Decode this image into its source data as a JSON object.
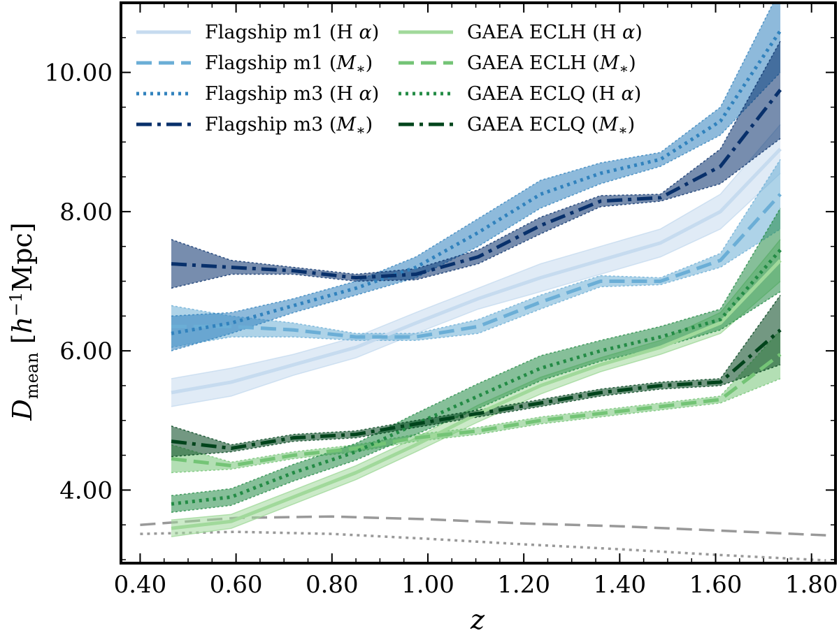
{
  "chart_data": {
    "type": "line",
    "xlabel": "z",
    "ylabel": "D_mean [h^-1 Mpc]",
    "xlim": [
      0.36,
      1.85
    ],
    "ylim": [
      2.95,
      11.0
    ],
    "x_ticks": [
      "0.40",
      "0.60",
      "0.80",
      "1.00",
      "1.20",
      "1.40",
      "1.60",
      "1.80"
    ],
    "y_ticks": [
      "4.00",
      "6.00",
      "8.00",
      "10.00"
    ],
    "grid": false,
    "legend_placement": "top",
    "x": [
      0.465,
      0.59,
      0.72,
      0.85,
      0.975,
      1.105,
      1.235,
      1.36,
      1.485,
      1.61,
      1.735
    ],
    "series": [
      {
        "name": "Flagship m1 (Hα)",
        "color": "#c6dbef",
        "dash": "solid",
        "values": [
          5.4,
          5.55,
          5.8,
          6.05,
          6.4,
          6.75,
          7.05,
          7.3,
          7.55,
          8.0,
          8.9
        ],
        "band": [
          0.2,
          0.2,
          0.15,
          0.15,
          0.15,
          0.15,
          0.2,
          0.2,
          0.2,
          0.25,
          0.35
        ]
      },
      {
        "name": "Flagship m1 (M*)",
        "color": "#6baed6",
        "dash": "dashed",
        "values": [
          6.35,
          6.35,
          6.3,
          6.2,
          6.2,
          6.35,
          6.7,
          7.0,
          7.0,
          7.3,
          8.25
        ],
        "band": [
          0.3,
          0.15,
          0.1,
          0.05,
          0.05,
          0.1,
          0.1,
          0.08,
          0.05,
          0.1,
          0.5
        ]
      },
      {
        "name": "Flagship m3 (Hα)",
        "color": "#3182bd",
        "dash": "dotted",
        "values": [
          6.25,
          6.4,
          6.65,
          6.9,
          7.2,
          7.7,
          8.25,
          8.55,
          8.75,
          9.3,
          10.6
        ],
        "band": [
          0.25,
          0.15,
          0.1,
          0.1,
          0.15,
          0.2,
          0.2,
          0.15,
          0.1,
          0.2,
          0.6
        ]
      },
      {
        "name": "Flagship m3 (M*)",
        "color": "#08306b",
        "dash": "dashdot",
        "values": [
          7.25,
          7.2,
          7.15,
          7.05,
          7.1,
          7.35,
          7.8,
          8.15,
          8.2,
          8.65,
          9.75
        ],
        "band": [
          0.35,
          0.1,
          0.05,
          0.05,
          0.08,
          0.1,
          0.12,
          0.08,
          0.05,
          0.25,
          0.7
        ]
      },
      {
        "name": "GAEA ECLH (Hα)",
        "color": "#a1d99b",
        "dash": "solid",
        "values": [
          3.45,
          3.55,
          3.9,
          4.25,
          4.65,
          5.1,
          5.5,
          5.8,
          6.05,
          6.4,
          7.3
        ],
        "band": [
          0.12,
          0.1,
          0.1,
          0.1,
          0.1,
          0.12,
          0.12,
          0.1,
          0.1,
          0.15,
          0.3
        ]
      },
      {
        "name": "GAEA ECLH (M*)",
        "color": "#74c476",
        "dash": "dashed",
        "values": [
          4.45,
          4.35,
          4.5,
          4.6,
          4.75,
          4.85,
          5.0,
          5.1,
          5.2,
          5.3,
          5.95
        ],
        "band": [
          0.2,
          0.05,
          0.05,
          0.05,
          0.05,
          0.05,
          0.05,
          0.05,
          0.05,
          0.05,
          0.35
        ]
      },
      {
        "name": "GAEA ECLQ (Hα)",
        "color": "#238b45",
        "dash": "dotted",
        "values": [
          3.8,
          3.9,
          4.25,
          4.55,
          4.95,
          5.35,
          5.75,
          6.0,
          6.2,
          6.45,
          7.45
        ],
        "band": [
          0.12,
          0.12,
          0.12,
          0.12,
          0.15,
          0.18,
          0.18,
          0.15,
          0.15,
          0.15,
          0.6
        ]
      },
      {
        "name": "GAEA ECLQ (M*)",
        "color": "#00441b",
        "dash": "dashdot",
        "values": [
          4.7,
          4.6,
          4.75,
          4.8,
          4.95,
          5.1,
          5.25,
          5.4,
          5.5,
          5.55,
          6.3
        ],
        "band": [
          0.22,
          0.05,
          0.05,
          0.05,
          0.05,
          0.05,
          0.05,
          0.05,
          0.05,
          0.05,
          0.5
        ]
      }
    ],
    "reference_lines": [
      {
        "color": "#999999",
        "dash": "dashed",
        "x": [
          0.4,
          0.6,
          0.8,
          1.0,
          1.2,
          1.4,
          1.6,
          1.83
        ],
        "values": [
          3.5,
          3.6,
          3.62,
          3.58,
          3.52,
          3.48,
          3.42,
          3.35
        ]
      },
      {
        "color": "#999999",
        "dash": "dotted",
        "x": [
          0.4,
          0.6,
          0.8,
          1.0,
          1.2,
          1.4,
          1.6,
          1.83
        ],
        "values": [
          3.37,
          3.4,
          3.37,
          3.3,
          3.22,
          3.15,
          3.07,
          2.99
        ]
      }
    ]
  }
}
